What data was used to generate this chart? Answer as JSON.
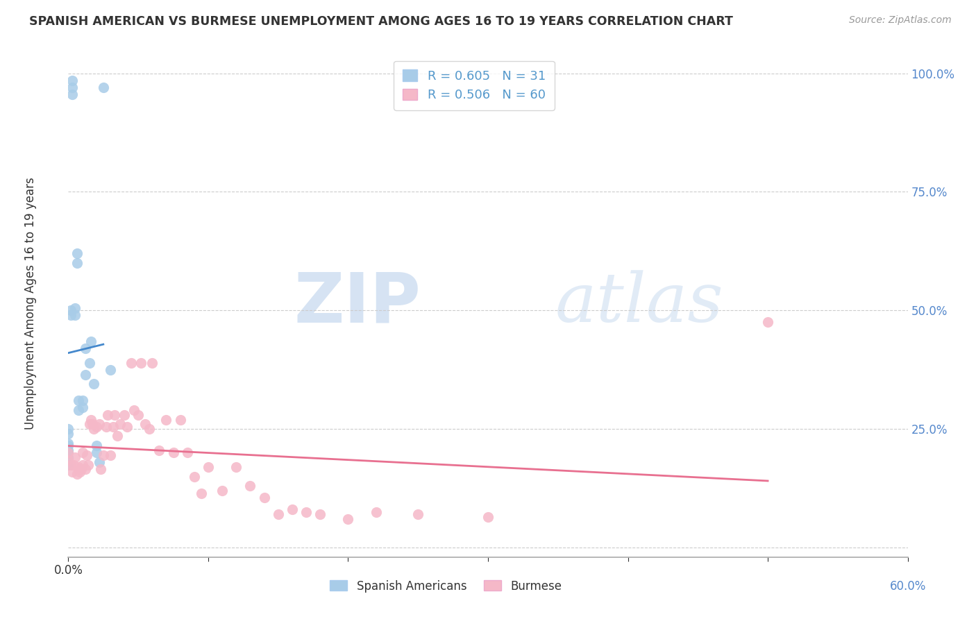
{
  "title": "SPANISH AMERICAN VS BURMESE UNEMPLOYMENT AMONG AGES 16 TO 19 YEARS CORRELATION CHART",
  "source": "Source: ZipAtlas.com",
  "ylabel": "Unemployment Among Ages 16 to 19 years",
  "R_spanish": 0.605,
  "N_spanish": 31,
  "R_burmese": 0.506,
  "N_burmese": 60,
  "xlim": [
    0.0,
    0.6
  ],
  "ylim": [
    -0.02,
    1.05
  ],
  "spanish_color": "#a8cce8",
  "burmese_color": "#f5b8c8",
  "spanish_line_color": "#4488cc",
  "burmese_line_color": "#e87090",
  "watermark_zip": "ZIP",
  "watermark_atlas": "atlas",
  "spanish_x": [
    0.0,
    0.0,
    0.0,
    0.0,
    0.0,
    0.0,
    0.0,
    0.0,
    0.002,
    0.002,
    0.003,
    0.003,
    0.003,
    0.005,
    0.005,
    0.006,
    0.006,
    0.007,
    0.007,
    0.01,
    0.01,
    0.012,
    0.012,
    0.015,
    0.016,
    0.018,
    0.02,
    0.02,
    0.022,
    0.025,
    0.03
  ],
  "spanish_y": [
    0.175,
    0.19,
    0.2,
    0.205,
    0.215,
    0.22,
    0.24,
    0.25,
    0.49,
    0.5,
    0.955,
    0.97,
    0.985,
    0.49,
    0.505,
    0.6,
    0.62,
    0.29,
    0.31,
    0.295,
    0.31,
    0.365,
    0.42,
    0.39,
    0.435,
    0.345,
    0.2,
    0.215,
    0.18,
    0.97,
    0.375
  ],
  "burmese_x": [
    0.0,
    0.0,
    0.002,
    0.003,
    0.004,
    0.005,
    0.006,
    0.007,
    0.008,
    0.009,
    0.01,
    0.01,
    0.012,
    0.013,
    0.014,
    0.015,
    0.016,
    0.017,
    0.018,
    0.02,
    0.022,
    0.023,
    0.025,
    0.027,
    0.028,
    0.03,
    0.032,
    0.033,
    0.035,
    0.037,
    0.04,
    0.042,
    0.045,
    0.047,
    0.05,
    0.052,
    0.055,
    0.058,
    0.06,
    0.065,
    0.07,
    0.075,
    0.08,
    0.085,
    0.09,
    0.095,
    0.1,
    0.11,
    0.12,
    0.13,
    0.14,
    0.15,
    0.16,
    0.17,
    0.18,
    0.2,
    0.22,
    0.25,
    0.3,
    0.5
  ],
  "burmese_y": [
    0.185,
    0.2,
    0.175,
    0.16,
    0.175,
    0.19,
    0.155,
    0.17,
    0.16,
    0.165,
    0.175,
    0.2,
    0.165,
    0.195,
    0.175,
    0.26,
    0.27,
    0.26,
    0.25,
    0.255,
    0.26,
    0.165,
    0.195,
    0.255,
    0.28,
    0.195,
    0.255,
    0.28,
    0.235,
    0.26,
    0.28,
    0.255,
    0.39,
    0.29,
    0.28,
    0.39,
    0.26,
    0.25,
    0.39,
    0.205,
    0.27,
    0.2,
    0.27,
    0.2,
    0.15,
    0.115,
    0.17,
    0.12,
    0.17,
    0.13,
    0.105,
    0.07,
    0.08,
    0.075,
    0.07,
    0.06,
    0.075,
    0.07,
    0.065,
    0.475
  ]
}
